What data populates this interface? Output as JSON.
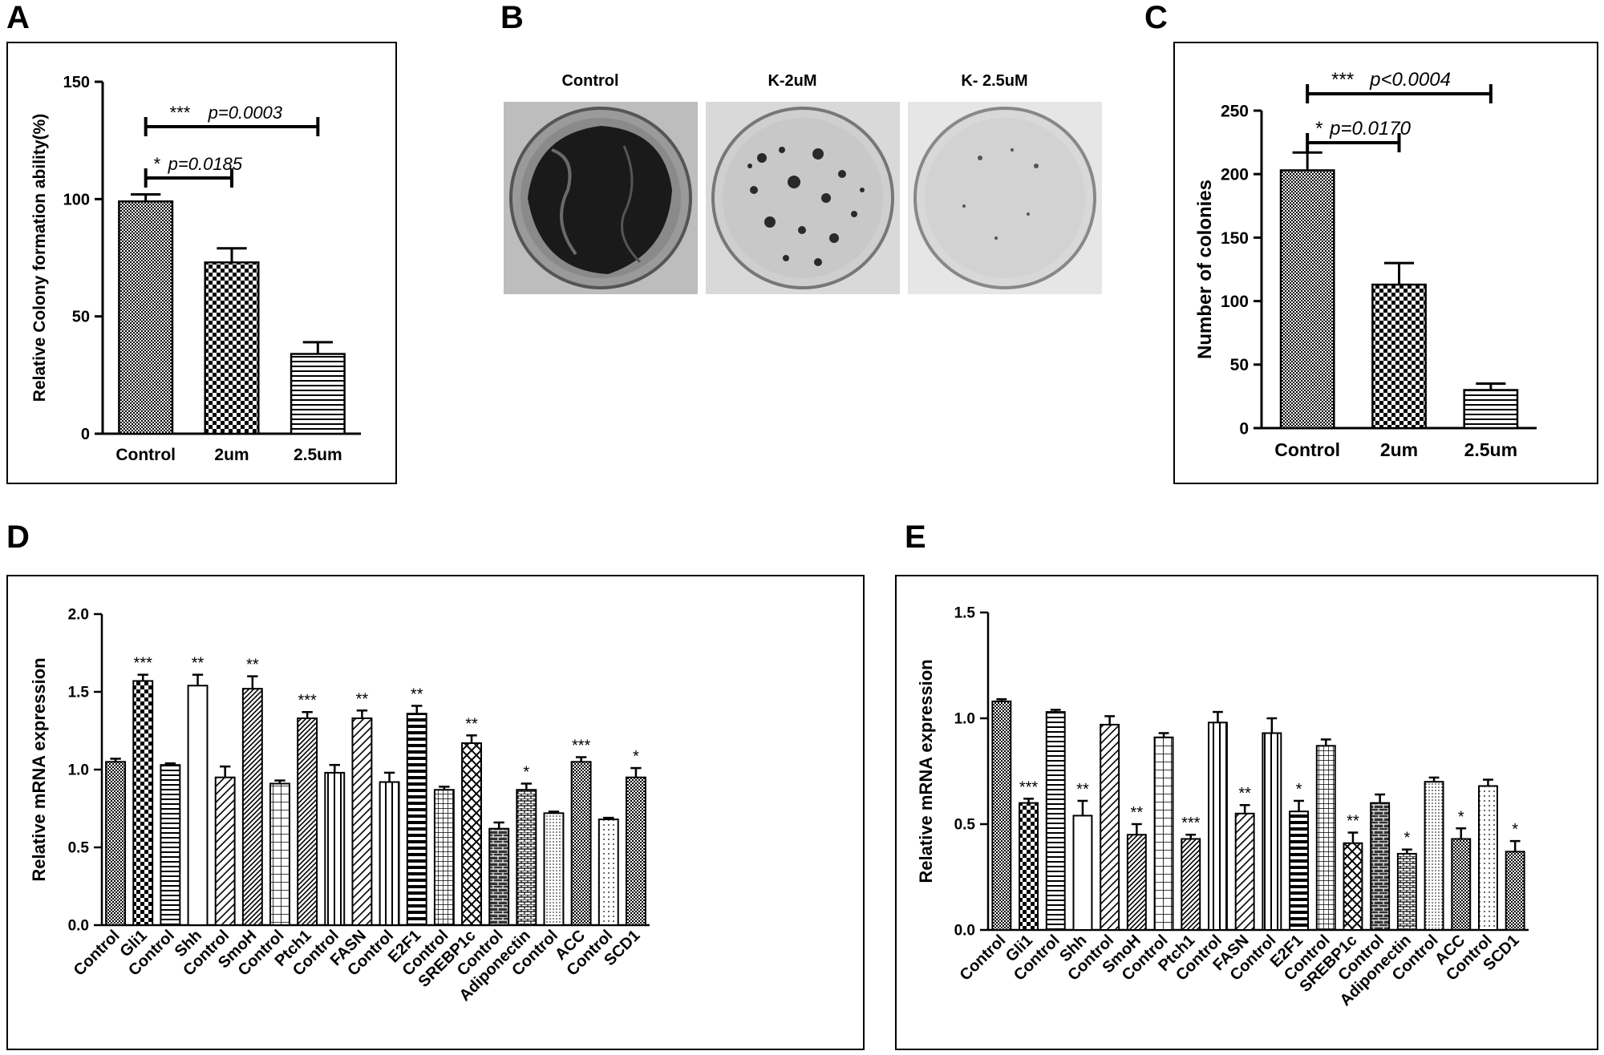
{
  "panels": {
    "A": "A",
    "B": "B",
    "C": "C",
    "D": "D",
    "E": "E"
  },
  "colors": {
    "ink": "#000000",
    "plate_dark": "#1a1a1a",
    "plate_bg": "#cfcfcf"
  },
  "photos": {
    "labels": [
      "Control",
      "K-2uM",
      "K- 2.5uM"
    ],
    "plate_density": [
      0.85,
      0.3,
      0.08
    ]
  },
  "chart_data": [
    {
      "id": "A",
      "type": "bar",
      "ylabel": "Relative Colony formation ability(%)",
      "categories": [
        "Control",
        "2um",
        "2.5um"
      ],
      "values": [
        99,
        73,
        34
      ],
      "errors": [
        3,
        6,
        5
      ],
      "ylim": [
        0,
        150
      ],
      "yticks": [
        "0",
        "50",
        "100",
        "150"
      ],
      "patterns": [
        "fine-check",
        "big-check",
        "hlines"
      ],
      "annotations": [
        {
          "stars": "*",
          "p": "p=0.0185",
          "from": 0,
          "to": 1
        },
        {
          "stars": "***",
          "p": "p=0.0003",
          "from": 0,
          "to": 2
        }
      ]
    },
    {
      "id": "C",
      "type": "bar",
      "ylabel": "Number of colonies",
      "categories": [
        "Control",
        "2um",
        "2.5um"
      ],
      "values": [
        203,
        113,
        30
      ],
      "errors": [
        14,
        17,
        5
      ],
      "ylim": [
        0,
        250
      ],
      "yticks": [
        "0",
        "50",
        "100",
        "150",
        "200",
        "250"
      ],
      "patterns": [
        "fine-check",
        "big-check",
        "hlines"
      ],
      "annotations": [
        {
          "stars": "*",
          "p": "p=0.0170",
          "from": 0,
          "to": 1
        },
        {
          "stars": "***",
          "p": "p<0.0004",
          "from": 0,
          "to": 2
        }
      ]
    },
    {
      "id": "D",
      "type": "bar",
      "ylabel": "Relative mRNA expression",
      "categories": [
        "Control",
        "Gli1",
        "Control",
        "Shh",
        "Control",
        "SmoH",
        "Control",
        "Ptch1",
        "Control",
        "FASN",
        "Control",
        "E2F1",
        "Control",
        "SREBP1c",
        "Control",
        "Adiponectin",
        "Control",
        "ACC",
        "Control",
        "SCD1"
      ],
      "values": [
        1.05,
        1.57,
        1.03,
        1.54,
        0.95,
        1.52,
        0.91,
        1.33,
        0.98,
        1.33,
        0.92,
        1.36,
        0.87,
        1.17,
        0.62,
        0.87,
        0.72,
        1.05,
        0.68,
        0.95
      ],
      "errors": [
        0.02,
        0.04,
        0.01,
        0.07,
        0.07,
        0.08,
        0.02,
        0.04,
        0.05,
        0.05,
        0.06,
        0.05,
        0.02,
        0.05,
        0.04,
        0.04,
        0.01,
        0.03,
        0.01,
        0.06
      ],
      "significance": [
        "",
        "***",
        "",
        "**",
        "",
        "**",
        "",
        "***",
        "",
        "**",
        "",
        "**",
        "",
        "**",
        "",
        "*",
        "",
        "***",
        "",
        "*"
      ],
      "ylim": [
        0,
        2.0
      ],
      "yticks": [
        "0.0",
        "0.5",
        "1.0",
        "1.5",
        "2.0"
      ],
      "patterns": [
        "fine-check",
        "big-check",
        "hlines",
        "blank",
        "diag",
        "diag-dense",
        "grid",
        "diag-dense",
        "vlines",
        "diag",
        "vlines",
        "thick-h",
        "grid-fine",
        "crosshatch",
        "brick",
        "brick-small",
        "dots-dense",
        "fine-check",
        "dots",
        "fine-check"
      ]
    },
    {
      "id": "E",
      "type": "bar",
      "ylabel": "Relative mRNA expression",
      "categories": [
        "Control",
        "Gli1",
        "Control",
        "Shh",
        "Control",
        "SmoH",
        "Control",
        "Ptch1",
        "Control",
        "FASN",
        "Control",
        "E2F1",
        "Control",
        "SREBP1c",
        "Control",
        "Adiponectin",
        "Control",
        "ACC",
        "Control",
        "SCD1"
      ],
      "values": [
        1.08,
        0.6,
        1.03,
        0.54,
        0.97,
        0.45,
        0.91,
        0.43,
        0.98,
        0.55,
        0.93,
        0.56,
        0.87,
        0.41,
        0.6,
        0.36,
        0.7,
        0.43,
        0.68,
        0.37
      ],
      "errors": [
        0.01,
        0.02,
        0.01,
        0.07,
        0.04,
        0.05,
        0.02,
        0.02,
        0.05,
        0.04,
        0.07,
        0.05,
        0.03,
        0.05,
        0.04,
        0.02,
        0.02,
        0.05,
        0.03,
        0.05
      ],
      "significance": [
        "",
        "***",
        "",
        "**",
        "",
        "**",
        "",
        "***",
        "",
        "**",
        "",
        "*",
        "",
        "**",
        "",
        "*",
        "",
        "*",
        "",
        "*"
      ],
      "ylim": [
        0,
        1.5
      ],
      "yticks": [
        "0.0",
        "0.5",
        "1.0",
        "1.5"
      ],
      "patterns": [
        "fine-check",
        "big-check",
        "hlines",
        "blank",
        "diag",
        "diag-dense",
        "grid",
        "diag-dense",
        "vlines",
        "diag",
        "vlines",
        "thick-h",
        "grid-fine",
        "crosshatch",
        "brick",
        "brick-small",
        "dots-dense",
        "fine-check",
        "dots",
        "fine-check"
      ]
    }
  ]
}
